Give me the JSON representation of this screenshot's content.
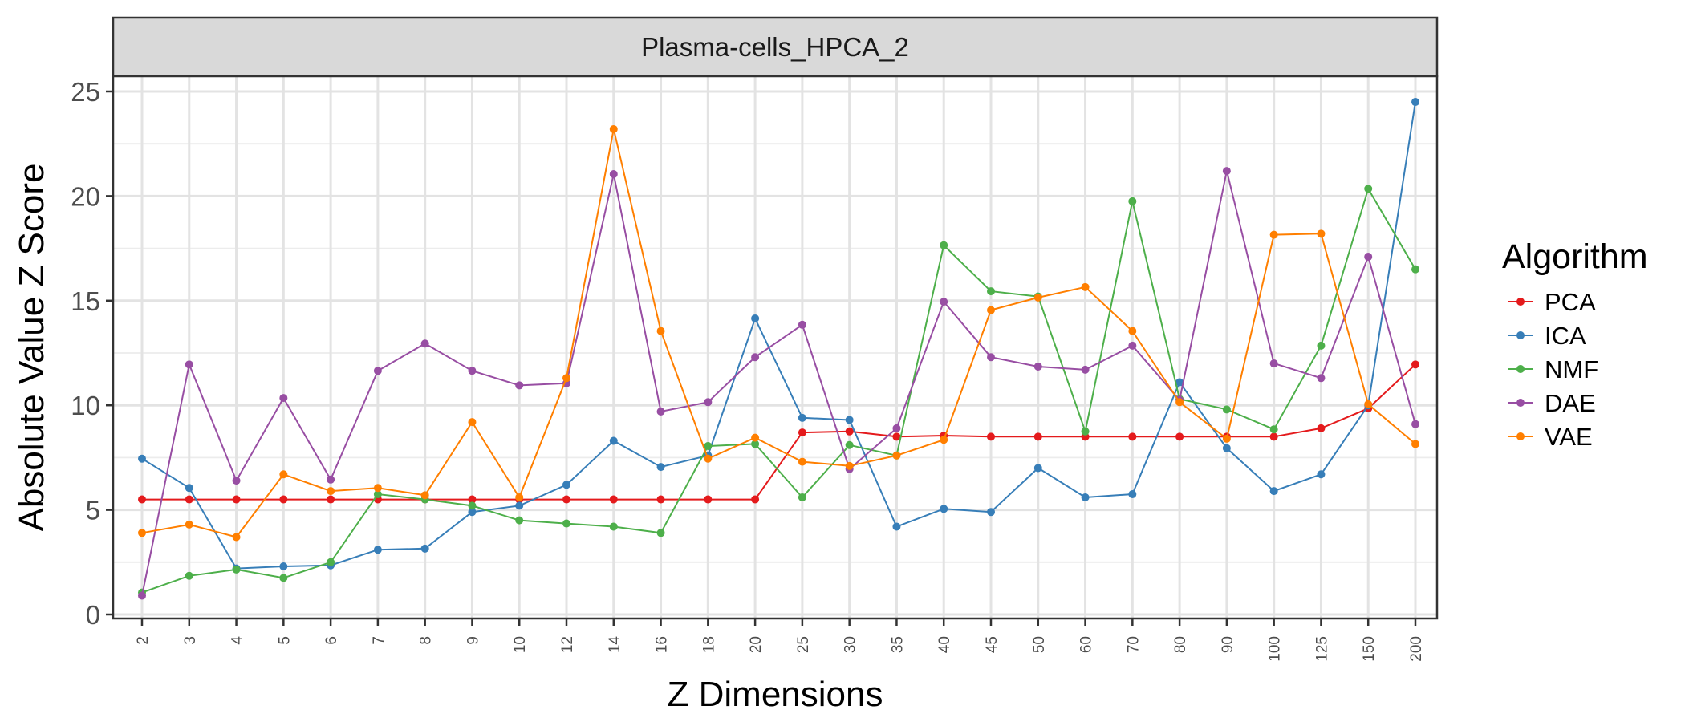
{
  "chart_data": {
    "type": "line",
    "panel_title": "Plasma-cells_HPCA_2",
    "xlabel": "Z Dimensions",
    "ylabel": "Absolute Value Z Score",
    "categories": [
      "2",
      "3",
      "4",
      "5",
      "6",
      "7",
      "8",
      "9",
      "10",
      "12",
      "14",
      "16",
      "18",
      "20",
      "25",
      "30",
      "35",
      "40",
      "45",
      "50",
      "60",
      "70",
      "80",
      "90",
      "100",
      "125",
      "150",
      "200"
    ],
    "ylim": [
      0,
      26
    ],
    "y_ticks": [
      0,
      5,
      10,
      15,
      20,
      25
    ],
    "grid": true,
    "legend_title": "Algorithm",
    "legend_position": "right",
    "series": [
      {
        "name": "PCA",
        "color": "#E41A1C",
        "values": [
          5.5,
          5.5,
          5.5,
          5.5,
          5.5,
          5.5,
          5.5,
          5.5,
          5.5,
          5.5,
          5.5,
          5.5,
          5.5,
          5.5,
          8.7,
          8.75,
          8.5,
          8.55,
          8.5,
          8.5,
          8.5,
          8.5,
          8.5,
          8.5,
          8.5,
          8.9,
          9.85,
          11.95
        ]
      },
      {
        "name": "ICA",
        "color": "#377EB8",
        "values": [
          7.45,
          6.05,
          2.2,
          2.3,
          2.35,
          3.1,
          3.15,
          4.9,
          5.2,
          6.2,
          8.3,
          7.05,
          7.6,
          14.15,
          9.4,
          9.3,
          4.2,
          5.05,
          4.9,
          7.0,
          5.6,
          5.75,
          11.1,
          7.95,
          5.9,
          6.7,
          10.0,
          24.5
        ]
      },
      {
        "name": "NMF",
        "color": "#4DAF4A",
        "values": [
          1.05,
          1.85,
          2.15,
          1.75,
          2.5,
          5.75,
          5.5,
          5.2,
          4.5,
          4.35,
          4.2,
          3.9,
          8.05,
          8.15,
          5.6,
          8.1,
          7.6,
          17.65,
          15.45,
          15.2,
          8.75,
          19.75,
          10.3,
          9.8,
          8.85,
          12.85,
          20.35,
          16.5
        ]
      },
      {
        "name": "DAE",
        "color": "#984EA3",
        "values": [
          0.9,
          11.95,
          6.4,
          10.35,
          6.45,
          11.65,
          12.95,
          11.65,
          10.95,
          11.05,
          21.05,
          9.7,
          10.15,
          12.3,
          13.85,
          6.95,
          8.9,
          14.95,
          12.3,
          11.85,
          11.7,
          12.85,
          10.25,
          21.2,
          12.0,
          11.3,
          17.1,
          9.1
        ]
      },
      {
        "name": "VAE",
        "color": "#FF7F00",
        "values": [
          3.9,
          4.3,
          3.7,
          6.7,
          5.9,
          6.05,
          5.7,
          9.2,
          5.6,
          11.3,
          23.2,
          13.55,
          7.45,
          8.45,
          7.3,
          7.1,
          7.6,
          8.35,
          14.55,
          15.15,
          15.65,
          13.55,
          10.15,
          8.4,
          18.15,
          18.2,
          10.05,
          8.15
        ]
      }
    ]
  }
}
